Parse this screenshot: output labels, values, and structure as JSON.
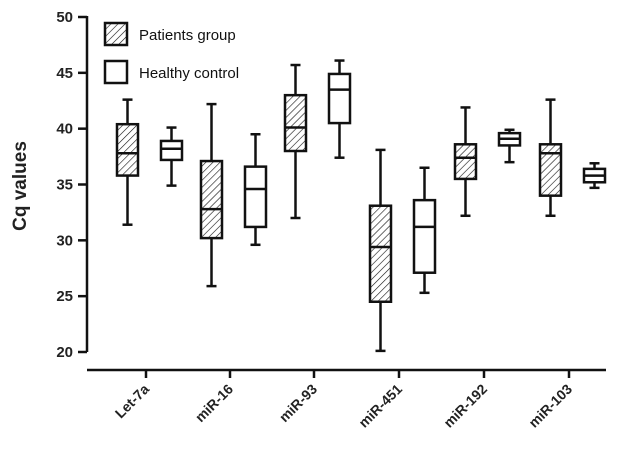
{
  "chart_data": {
    "type": "boxplot",
    "title": "",
    "xlabel": "",
    "ylabel": "Cq values",
    "ylim": [
      20,
      50
    ],
    "yticks": [
      20,
      25,
      30,
      35,
      40,
      45,
      50
    ],
    "grid": false,
    "legend_position": "top-left",
    "categories": [
      "Let-7a",
      "miR-16",
      "miR-93",
      "miR-451",
      "miR-192",
      "miR-103"
    ],
    "series": [
      {
        "name": "Patients group",
        "pattern": "hatched",
        "boxes": [
          {
            "min": 31.4,
            "q1": 35.8,
            "median": 37.8,
            "q3": 40.4,
            "max": 42.6
          },
          {
            "min": 25.9,
            "q1": 30.2,
            "median": 32.8,
            "q3": 37.1,
            "max": 42.2
          },
          {
            "min": 32.0,
            "q1": 38.0,
            "median": 40.1,
            "q3": 43.0,
            "max": 45.7
          },
          {
            "min": 20.1,
            "q1": 24.5,
            "median": 29.4,
            "q3": 33.1,
            "max": 38.1
          },
          {
            "min": 32.2,
            "q1": 35.5,
            "median": 37.4,
            "q3": 38.6,
            "max": 41.9
          },
          {
            "min": 32.2,
            "q1": 34.0,
            "median": 37.8,
            "q3": 38.6,
            "max": 42.6
          }
        ]
      },
      {
        "name": "Healthy control",
        "pattern": "open",
        "boxes": [
          {
            "min": 34.9,
            "q1": 37.2,
            "median": 38.2,
            "q3": 38.9,
            "max": 40.1
          },
          {
            "min": 29.6,
            "q1": 31.2,
            "median": 34.6,
            "q3": 36.6,
            "max": 39.5
          },
          {
            "min": 37.4,
            "q1": 40.5,
            "median": 43.5,
            "q3": 44.9,
            "max": 46.1
          },
          {
            "min": 25.3,
            "q1": 27.1,
            "median": 31.2,
            "q3": 33.6,
            "max": 36.5
          },
          {
            "min": 37.0,
            "q1": 38.5,
            "median": 39.1,
            "q3": 39.6,
            "max": 39.9
          },
          {
            "min": 34.7,
            "q1": 35.2,
            "median": 35.8,
            "q3": 36.4,
            "max": 36.9
          }
        ]
      }
    ]
  }
}
